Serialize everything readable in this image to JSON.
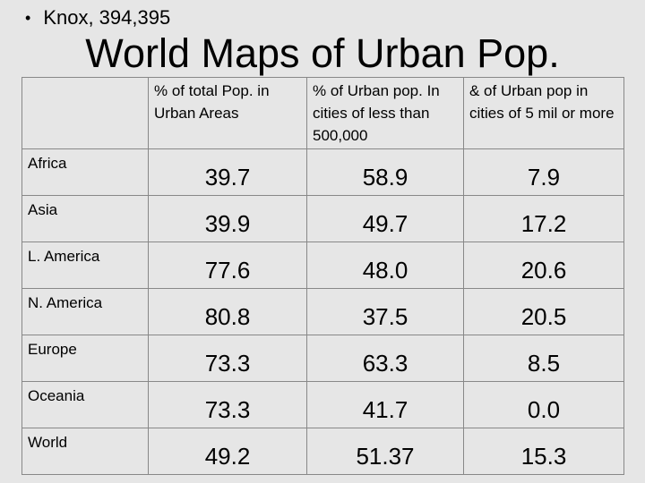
{
  "bullet": "Knox, 394,395",
  "title": "World Maps of Urban Pop.",
  "table": {
    "headers": [
      "% of total Pop. in Urban Areas",
      "% of Urban pop. In cities of less than 500,000",
      "& of Urban pop in cities of 5 mil or more"
    ],
    "rows": [
      {
        "region": "Africa",
        "values": [
          "39.7",
          "58.9",
          "7.9"
        ]
      },
      {
        "region": "Asia",
        "values": [
          "39.9",
          "49.7",
          "17.2"
        ]
      },
      {
        "region": "L. America",
        "values": [
          "77.6",
          "48.0",
          "20.6"
        ]
      },
      {
        "region": "N. America",
        "values": [
          "80.8",
          "37.5",
          "20.5"
        ]
      },
      {
        "region": "Europe",
        "values": [
          "73.3",
          "63.3",
          "8.5"
        ]
      },
      {
        "region": "Oceania",
        "values": [
          "73.3",
          "41.7",
          "0.0"
        ]
      },
      {
        "region": "World",
        "values": [
          "49.2",
          "51.37",
          "15.3"
        ]
      }
    ]
  }
}
